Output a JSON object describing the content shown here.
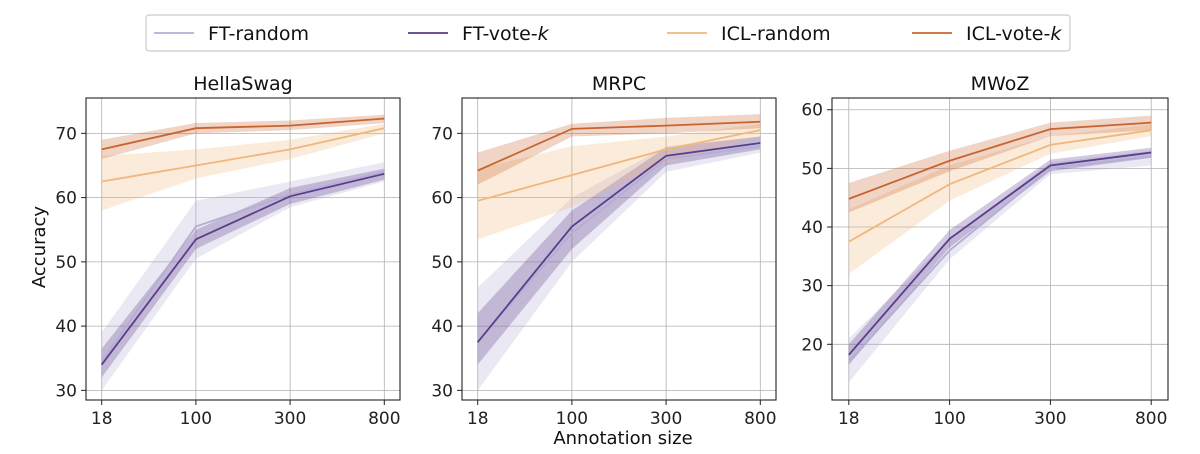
{
  "legend": {
    "entries": [
      {
        "name": "FT-random",
        "label": "FT-random",
        "italic_suffix": "",
        "color": "#b5aed4"
      },
      {
        "name": "FT-vote-k",
        "label": "FT-vote-",
        "italic_suffix": "k",
        "color": "#5a3d8c"
      },
      {
        "name": "ICL-random",
        "label": "ICL-random",
        "italic_suffix": "",
        "color": "#f0b77c"
      },
      {
        "name": "ICL-vote-k",
        "label": "ICL-vote-",
        "italic_suffix": "k",
        "color": "#c8642e"
      }
    ]
  },
  "shared": {
    "xlabel": "Annotation size",
    "ylabel": "Accuracy",
    "categories": [
      "18",
      "100",
      "300",
      "800"
    ]
  },
  "chart_data": [
    {
      "type": "line",
      "title": "HellaSwag",
      "categories": [
        "18",
        "100",
        "300",
        "800"
      ],
      "ylim": [
        28.5,
        75.5
      ],
      "yticks": [
        30,
        40,
        50,
        60,
        70
      ],
      "grid": true,
      "series": [
        {
          "name": "FT-random",
          "values": [
            34.5,
            55.5,
            60.5,
            64.0
          ],
          "low": [
            30.0,
            50.5,
            58.5,
            62.5
          ],
          "high": [
            39.0,
            59.5,
            62.5,
            65.5
          ]
        },
        {
          "name": "FT-vote-k",
          "values": [
            34.0,
            53.5,
            60.2,
            63.7
          ],
          "low": [
            32.0,
            52.0,
            59.0,
            62.8
          ],
          "high": [
            36.5,
            55.0,
            61.5,
            64.5
          ]
        },
        {
          "name": "ICL-random",
          "values": [
            62.5,
            65.0,
            67.5,
            70.8
          ],
          "low": [
            58.0,
            63.0,
            66.0,
            70.0
          ],
          "high": [
            66.5,
            67.5,
            69.0,
            71.5
          ]
        },
        {
          "name": "ICL-vote-k",
          "values": [
            67.5,
            70.8,
            71.2,
            72.3
          ],
          "low": [
            66.0,
            70.0,
            70.5,
            71.6
          ],
          "high": [
            69.0,
            71.6,
            72.0,
            72.9
          ]
        }
      ]
    },
    {
      "type": "line",
      "title": "MRPC",
      "categories": [
        "18",
        "100",
        "300",
        "800"
      ],
      "ylim": [
        28.5,
        75.5
      ],
      "yticks": [
        30,
        40,
        50,
        60,
        70
      ],
      "grid": true,
      "series": [
        {
          "name": "FT-random",
          "values": [
            37.5,
            54.5,
            66.0,
            68.0
          ],
          "low": [
            30.0,
            50.0,
            64.0,
            67.0
          ],
          "high": [
            46.0,
            60.0,
            68.0,
            69.5
          ]
        },
        {
          "name": "FT-vote-k",
          "values": [
            37.5,
            55.5,
            66.5,
            68.5
          ],
          "low": [
            34.0,
            52.0,
            65.0,
            67.5
          ],
          "high": [
            42.0,
            58.0,
            67.8,
            69.5
          ]
        },
        {
          "name": "ICL-random",
          "values": [
            59.5,
            63.5,
            67.5,
            70.5
          ],
          "low": [
            53.5,
            58.5,
            65.5,
            69.5
          ],
          "high": [
            64.5,
            68.0,
            69.5,
            71.5
          ]
        },
        {
          "name": "ICL-vote-k",
          "values": [
            64.2,
            70.7,
            71.2,
            71.8
          ],
          "low": [
            62.0,
            69.5,
            70.0,
            70.8
          ],
          "high": [
            67.0,
            71.5,
            72.4,
            73.0
          ]
        }
      ]
    },
    {
      "type": "line",
      "title": "MWoZ",
      "categories": [
        "18",
        "100",
        "300",
        "800"
      ],
      "ylim": [
        10.5,
        62
      ],
      "yticks": [
        20,
        30,
        40,
        50,
        60
      ],
      "grid": true,
      "series": [
        {
          "name": "FT-random",
          "values": [
            17.0,
            36.0,
            50.0,
            52.0
          ],
          "low": [
            13.5,
            34.5,
            49.0,
            50.5
          ],
          "high": [
            21.0,
            38.0,
            51.0,
            53.0
          ]
        },
        {
          "name": "FT-vote-k",
          "values": [
            18.2,
            38.0,
            50.5,
            52.7
          ],
          "low": [
            16.5,
            36.5,
            49.5,
            51.8
          ],
          "high": [
            20.0,
            39.5,
            51.5,
            53.5
          ]
        },
        {
          "name": "ICL-random",
          "values": [
            37.5,
            47.3,
            54.0,
            56.5
          ],
          "low": [
            32.0,
            44.5,
            52.5,
            55.5
          ],
          "high": [
            43.0,
            50.5,
            55.5,
            57.5
          ]
        },
        {
          "name": "ICL-vote-k",
          "values": [
            44.8,
            51.3,
            56.7,
            57.8
          ],
          "low": [
            42.5,
            49.5,
            55.5,
            56.5
          ],
          "high": [
            47.5,
            53.0,
            57.8,
            59.0
          ]
        }
      ]
    }
  ]
}
